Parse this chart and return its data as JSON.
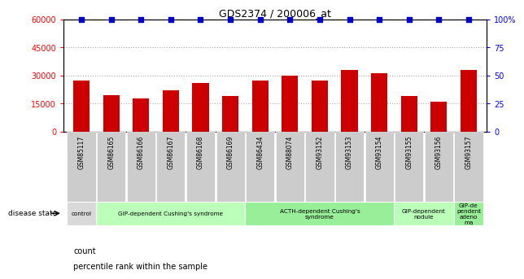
{
  "title": "GDS2374 / 200006_at",
  "samples": [
    "GSM85117",
    "GSM86165",
    "GSM86166",
    "GSM86167",
    "GSM86168",
    "GSM86169",
    "GSM86434",
    "GSM88074",
    "GSM93152",
    "GSM93153",
    "GSM93154",
    "GSM93155",
    "GSM93156",
    "GSM93157"
  ],
  "counts": [
    27000,
    19500,
    17500,
    22000,
    26000,
    19000,
    27000,
    30000,
    27000,
    33000,
    31000,
    19000,
    16000,
    33000
  ],
  "percentile": [
    100,
    100,
    100,
    100,
    100,
    100,
    100,
    100,
    100,
    100,
    100,
    100,
    100,
    100
  ],
  "bar_color": "#cc0000",
  "dot_color": "#0000cc",
  "ylim_left": [
    0,
    60000
  ],
  "ylim_right": [
    0,
    100
  ],
  "yticks_left": [
    0,
    15000,
    30000,
    45000,
    60000
  ],
  "yticks_right": [
    0,
    25,
    50,
    75,
    100
  ],
  "groups": [
    {
      "label": "control",
      "start": 0,
      "end": 1,
      "color": "#d9d9d9"
    },
    {
      "label": "GIP-dependent Cushing's syndrome",
      "start": 1,
      "end": 6,
      "color": "#bbffbb"
    },
    {
      "label": "ACTH-dependent Cushing's\nsyndrome",
      "start": 6,
      "end": 11,
      "color": "#99ee99"
    },
    {
      "label": "GIP-dependent\nnodule",
      "start": 11,
      "end": 13,
      "color": "#bbffbb"
    },
    {
      "label": "GIP-de\npendent\nadeno\nma",
      "start": 13,
      "end": 14,
      "color": "#99ee99"
    }
  ],
  "disease_state_label": "disease state",
  "legend_count_label": "count",
  "legend_pct_label": "percentile rank within the sample",
  "bar_width": 0.55,
  "background_color": "#ffffff",
  "grid_color": "#aaaaaa",
  "tick_bg_color": "#cccccc",
  "xlim": [
    -0.6,
    13.6
  ]
}
